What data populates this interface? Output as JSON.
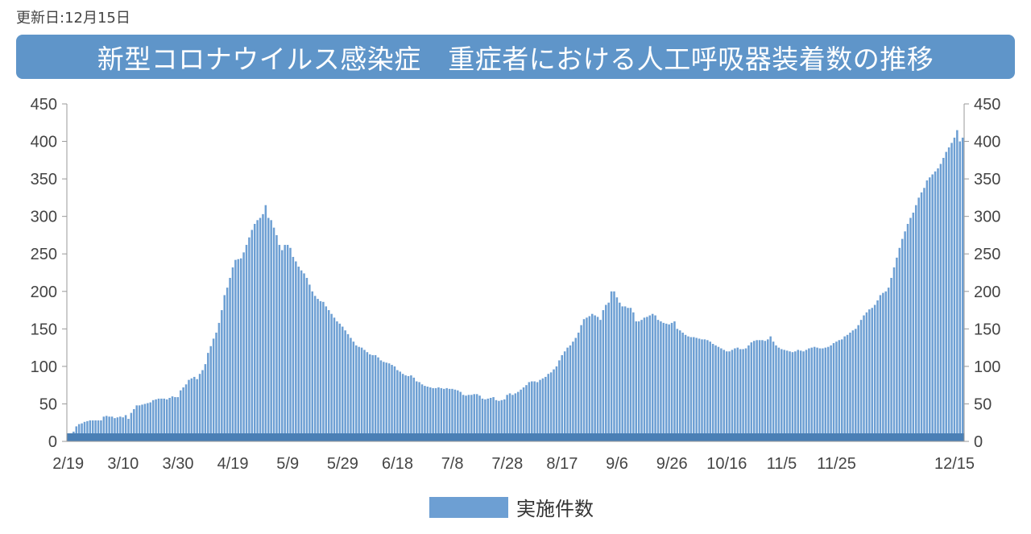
{
  "header": {
    "updated": "更新日:12月15日",
    "title": "新型コロナウイルス感染症　重症者における人工呼吸器装着数の推移"
  },
  "colors": {
    "bar": "#6d9fd3",
    "banner": "#5f95c9",
    "axis": "#999999"
  },
  "chart_data": {
    "type": "bar",
    "title": "新型コロナウイルス感染症　重症者における人工呼吸器装着数の推移",
    "xlabel": "",
    "ylabel": "",
    "ylim": [
      0,
      450
    ],
    "yticks": [
      0,
      50,
      100,
      150,
      200,
      250,
      300,
      350,
      400,
      450
    ],
    "secondary_y_axis": true,
    "grid": false,
    "legend_position": "bottom",
    "start_date": "2/19",
    "xtick_labels": [
      "2/19",
      "3/10",
      "3/30",
      "4/19",
      "5/9",
      "5/29",
      "6/18",
      "7/8",
      "7/28",
      "8/17",
      "9/6",
      "9/26",
      "10/16",
      "11/5",
      "11/25",
      "12/15"
    ],
    "series": [
      {
        "name": "実施件数",
        "values": [
          5,
          10,
          13,
          20,
          23,
          24,
          26,
          27,
          28,
          28,
          28,
          28,
          28,
          33,
          34,
          33,
          33,
          31,
          32,
          33,
          32,
          35,
          30,
          38,
          43,
          48,
          48,
          49,
          50,
          51,
          52,
          55,
          56,
          57,
          57,
          57,
          56,
          58,
          60,
          59,
          59,
          68,
          72,
          76,
          82,
          84,
          86,
          83,
          90,
          95,
          103,
          118,
          127,
          137,
          145,
          158,
          175,
          195,
          205,
          218,
          232,
          242,
          243,
          244,
          252,
          262,
          272,
          282,
          290,
          295,
          298,
          303,
          315,
          298,
          295,
          285,
          275,
          262,
          255,
          262,
          262,
          258,
          246,
          240,
          233,
          228,
          224,
          218,
          209,
          200,
          194,
          190,
          187,
          186,
          180,
          175,
          170,
          165,
          160,
          157,
          153,
          148,
          143,
          138,
          133,
          128,
          126,
          125,
          122,
          119,
          116,
          115,
          115,
          112,
          108,
          106,
          105,
          104,
          102,
          100,
          95,
          93,
          90,
          88,
          87,
          88,
          85,
          80,
          79,
          76,
          74,
          73,
          72,
          71,
          71,
          72,
          71,
          70,
          71,
          70,
          70,
          69,
          68,
          66,
          62,
          61,
          62,
          62,
          63,
          63,
          61,
          57,
          56,
          57,
          58,
          59,
          55,
          54,
          55,
          56,
          62,
          64,
          62,
          64,
          66,
          69,
          72,
          75,
          79,
          80,
          80,
          79,
          82,
          84,
          86,
          90,
          92,
          96,
          100,
          108,
          115,
          120,
          125,
          128,
          133,
          138,
          145,
          155,
          163,
          165,
          167,
          170,
          168,
          166,
          162,
          175,
          182,
          185,
          200,
          200,
          192,
          185,
          180,
          180,
          178,
          178,
          172,
          160,
          160,
          162,
          165,
          166,
          168,
          170,
          168,
          162,
          160,
          158,
          157,
          156,
          158,
          160,
          150,
          148,
          145,
          142,
          140,
          139,
          139,
          138,
          137,
          136,
          136,
          135,
          133,
          130,
          128,
          126,
          124,
          122,
          120,
          120,
          122,
          124,
          125,
          123,
          123,
          124,
          128,
          132,
          134,
          135,
          135,
          135,
          134,
          136,
          140,
          133,
          128,
          125,
          123,
          122,
          121,
          120,
          119,
          120,
          122,
          121,
          120,
          122,
          124,
          125,
          126,
          125,
          124,
          124,
          125,
          126,
          128,
          131,
          133,
          135,
          136,
          140,
          142,
          145,
          148,
          150,
          155,
          162,
          168,
          172,
          176,
          178,
          182,
          188,
          195,
          198,
          200,
          205,
          218,
          232,
          245,
          258,
          270,
          280,
          290,
          298,
          305,
          315,
          325,
          332,
          338,
          348,
          352,
          356,
          360,
          364,
          370,
          378,
          386,
          392,
          398,
          405,
          415,
          400,
          405
        ]
      }
    ]
  },
  "legend": {
    "label": "実施件数"
  }
}
